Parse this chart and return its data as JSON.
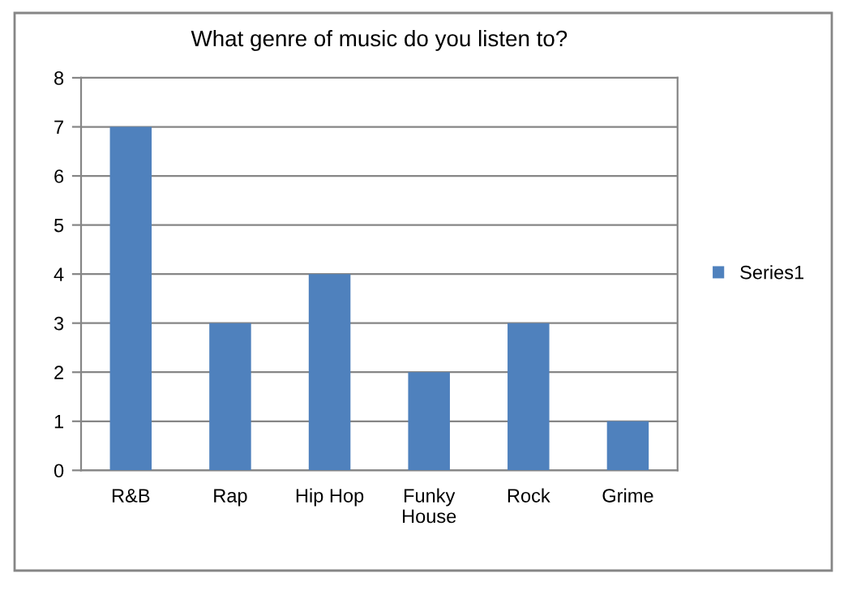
{
  "chart_data": {
    "type": "bar",
    "title": "What genre of music do you listen to?",
    "categories": [
      "R&B",
      "Rap",
      "Hip Hop",
      "Funky House",
      "Rock",
      "Grime"
    ],
    "series": [
      {
        "name": "Series1",
        "color": "#4f81bd",
        "values": [
          7,
          3,
          4,
          2,
          3,
          1
        ]
      }
    ],
    "ylim": [
      0,
      8
    ],
    "yticks": [
      0,
      1,
      2,
      3,
      4,
      5,
      6,
      7,
      8
    ],
    "grid": "y",
    "legend": "right"
  }
}
